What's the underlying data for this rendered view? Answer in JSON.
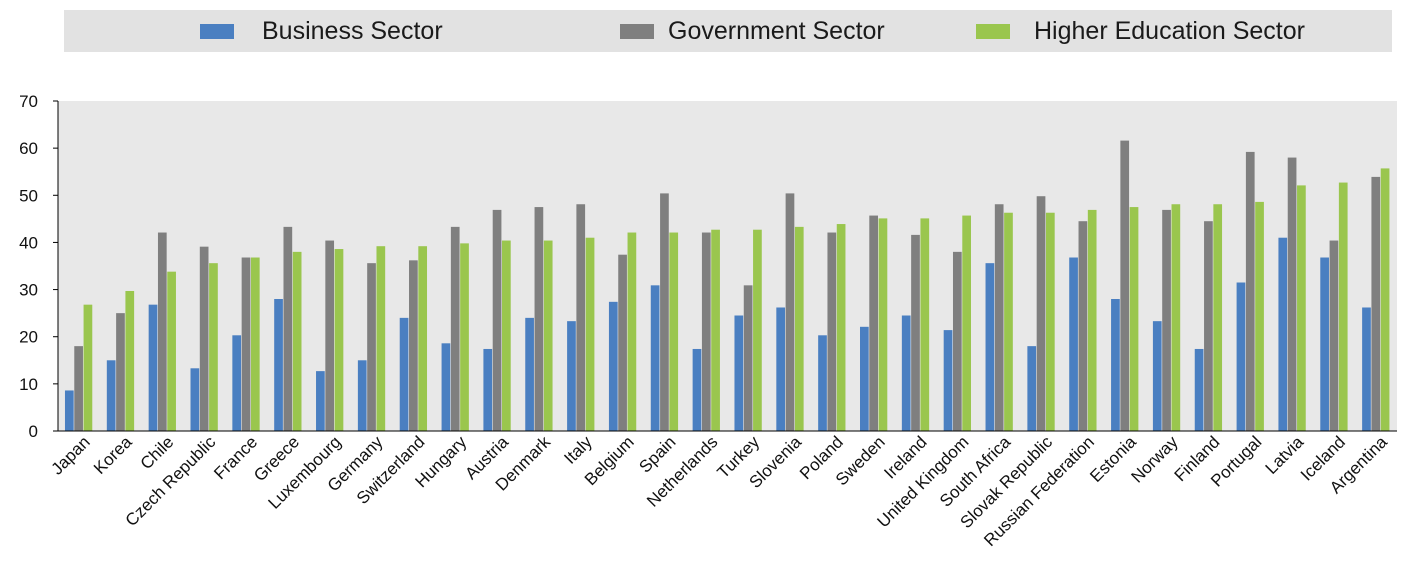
{
  "chart_data": {
    "type": "bar",
    "title": "",
    "xlabel": "",
    "ylabel": "",
    "ylim": [
      0,
      70
    ],
    "yticks": [
      0,
      10,
      20,
      30,
      40,
      50,
      60,
      70
    ],
    "grid": false,
    "legend_position": "top",
    "categories": [
      "Japan",
      "Korea",
      "Chile",
      "Czech Republic",
      "France",
      "Greece",
      "Luxembourg",
      "Germany",
      "Switzerland",
      "Hungary",
      "Austria",
      "Denmark",
      "Italy",
      "Belgium",
      "Spain",
      "Netherlands",
      "Turkey",
      "Slovenia",
      "Poland",
      "Sweden",
      "Ireland",
      "United Kingdom",
      "South Africa",
      "Slovak Republic",
      "Russian Federation",
      "Estonia",
      "Norway",
      "Finland",
      "Portugal",
      "Latvia",
      "Iceland",
      "Argentina"
    ],
    "series": [
      {
        "name": "Business Sector",
        "color": "#4a7fc1",
        "values": [
          8.6,
          15,
          26.8,
          13.3,
          20.3,
          28,
          12.7,
          15,
          24,
          18.6,
          17.4,
          24,
          23.3,
          27.4,
          30.9,
          17.4,
          24.5,
          26.2,
          20.3,
          22.1,
          24.5,
          21.4,
          35.6,
          18,
          36.8,
          28,
          23.3,
          17.4,
          31.5,
          41,
          36.8,
          26.2
        ]
      },
      {
        "name": "Government Sector",
        "color": "#7f7f7f",
        "values": [
          18,
          25,
          42.1,
          39.1,
          36.8,
          43.3,
          40.4,
          35.6,
          36.2,
          43.3,
          46.9,
          47.5,
          48.1,
          37.4,
          50.4,
          42.1,
          30.9,
          50.4,
          42.1,
          45.7,
          41.6,
          38,
          48.1,
          49.8,
          44.5,
          61.6,
          46.9,
          44.5,
          59.2,
          58,
          40.4,
          53.9
        ]
      },
      {
        "name": "Higher Education Sector",
        "color": "#9ac64e",
        "values": [
          26.8,
          29.7,
          33.8,
          35.6,
          36.8,
          38,
          38.6,
          39.2,
          39.2,
          39.8,
          40.4,
          40.4,
          41,
          42.1,
          42.1,
          42.7,
          42.7,
          43.3,
          43.9,
          45.1,
          45.1,
          45.7,
          46.3,
          46.3,
          46.9,
          47.5,
          48.1,
          48.1,
          48.6,
          52.1,
          52.7,
          55.7
        ]
      }
    ]
  }
}
